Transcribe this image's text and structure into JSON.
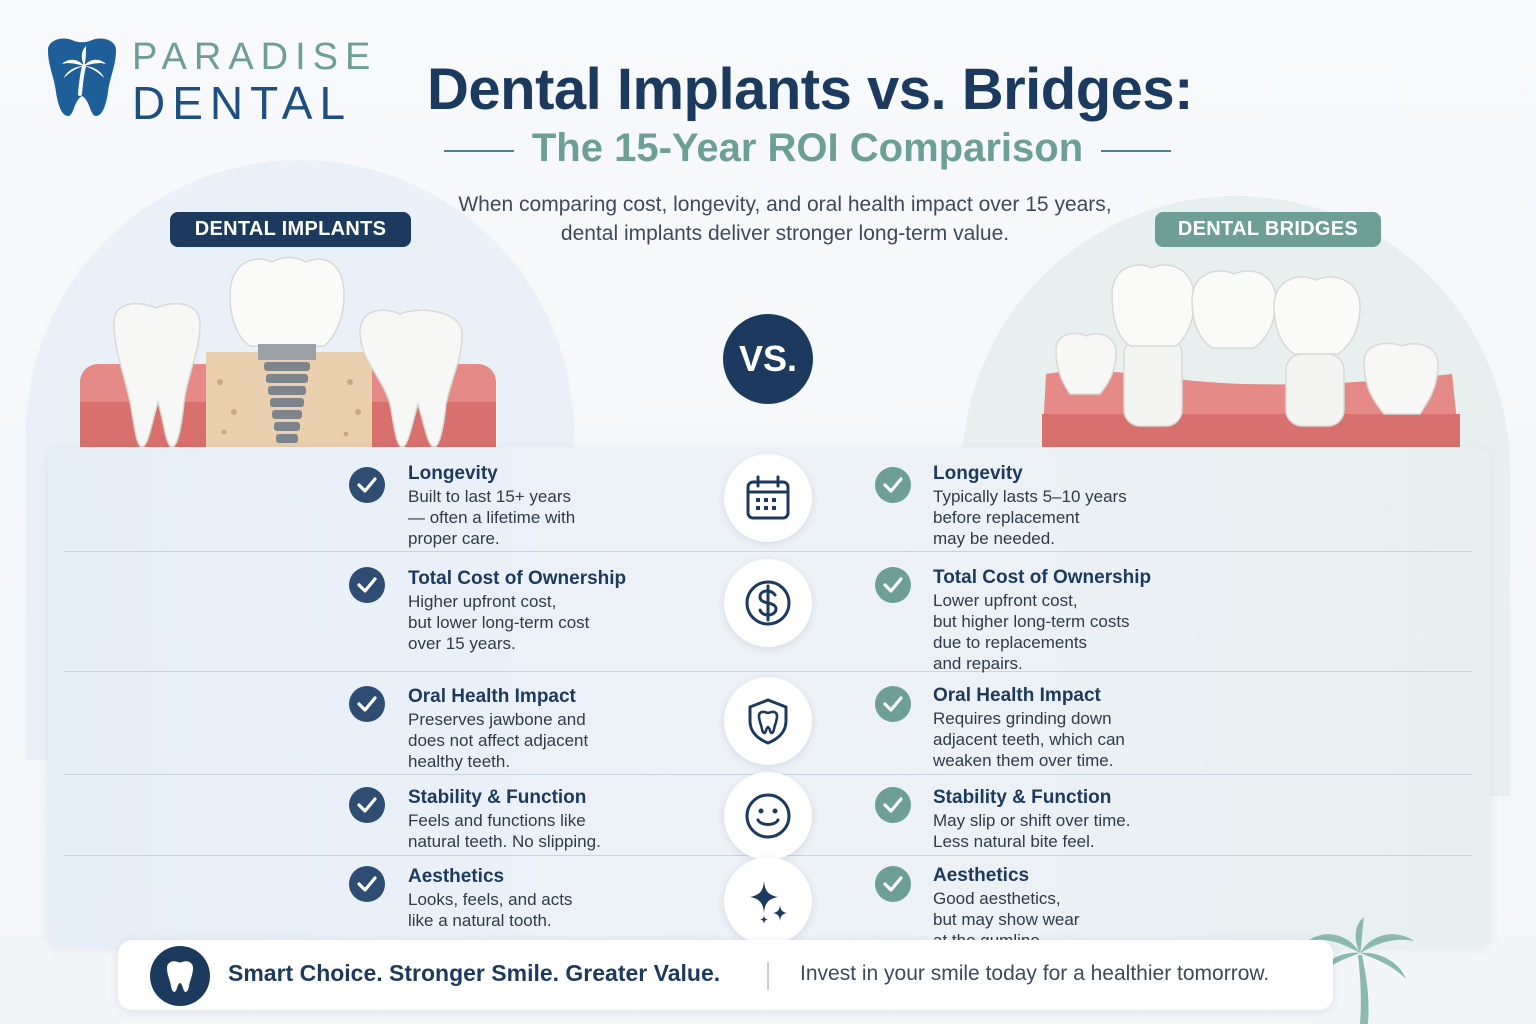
{
  "brand": {
    "line1": "PARADISE",
    "line2": "DENTAL"
  },
  "header": {
    "title": "Dental Implants vs. Bridges:",
    "subtitle": "The 15-Year ROI Comparison",
    "intro": "When comparing cost, longevity, and oral health impact over 15 years, dental implants deliver stronger long-term value."
  },
  "badges": {
    "implants": "DENTAL IMPLANTS",
    "bridges": "DENTAL BRIDGES"
  },
  "vs_label": "VS.",
  "rows": [
    {
      "icon": "calendar-icon",
      "implants": {
        "heading": "Longevity",
        "desc": "Built to last 15+ years\n— often a lifetime with\nproper care."
      },
      "bridges": {
        "heading": "Longevity",
        "desc": "Typically lasts 5–10 years\nbefore replacement\nmay be needed."
      }
    },
    {
      "icon": "dollar-icon",
      "implants": {
        "heading": "Total Cost of Ownership",
        "desc": "Higher upfront cost,\nbut lower long-term cost\nover 15 years."
      },
      "bridges": {
        "heading": "Total Cost of Ownership",
        "desc": "Lower upfront cost,\nbut higher long-term costs\ndue to replacements\nand repairs."
      }
    },
    {
      "icon": "shield-tooth-icon",
      "implants": {
        "heading": "Oral Health Impact",
        "desc": "Preserves jawbone and\ndoes not affect adjacent\nhealthy teeth."
      },
      "bridges": {
        "heading": "Oral Health Impact",
        "desc": "Requires grinding down\nadjacent teeth, which can\nweaken them over time."
      }
    },
    {
      "icon": "smile-icon",
      "implants": {
        "heading": "Stability & Function",
        "desc": "Feels and functions like\nnatural teeth. No slipping."
      },
      "bridges": {
        "heading": "Stability & Function",
        "desc": "May slip or shift over time.\nLess natural bite feel."
      }
    },
    {
      "icon": "sparkle-icon",
      "implants": {
        "heading": "Aesthetics",
        "desc": "Looks, feels, and acts\nlike a natural tooth."
      },
      "bridges": {
        "heading": "Aesthetics",
        "desc": "Good aesthetics,\nbut may show wear\nat the gumline."
      }
    }
  ],
  "footer": {
    "tagline": "Smart Choice. Stronger Smile. Greater Value.",
    "cta": "Invest in your smile today for a healthier tomorrow."
  },
  "colors": {
    "navy": "#1c3a5e",
    "teal": "#6e9f96",
    "gum": "#e58a86"
  }
}
